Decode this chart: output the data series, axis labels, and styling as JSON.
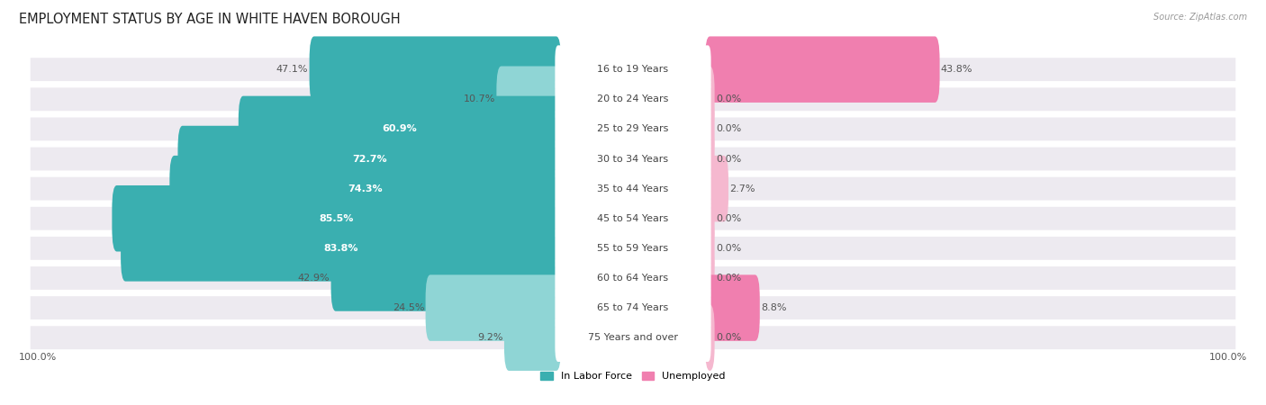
{
  "title": "EMPLOYMENT STATUS BY AGE IN WHITE HAVEN BOROUGH",
  "source": "Source: ZipAtlas.com",
  "categories": [
    "16 to 19 Years",
    "20 to 24 Years",
    "25 to 29 Years",
    "30 to 34 Years",
    "35 to 44 Years",
    "45 to 54 Years",
    "55 to 59 Years",
    "60 to 64 Years",
    "65 to 74 Years",
    "75 Years and over"
  ],
  "labor_force": [
    47.1,
    10.7,
    60.9,
    72.7,
    74.3,
    85.5,
    83.8,
    42.9,
    24.5,
    9.2
  ],
  "unemployed": [
    43.8,
    0.0,
    0.0,
    0.0,
    2.7,
    0.0,
    0.0,
    0.0,
    8.8,
    0.0
  ],
  "labor_force_color_dark": "#3AAFB0",
  "labor_force_color_light": "#8FD5D5",
  "unemployed_color_dark": "#F07FAF",
  "unemployed_color_light": "#F5B8CF",
  "row_bg_color": "#EDEAF0",
  "axis_label_left": "100.0%",
  "axis_label_right": "100.0%",
  "legend_labor": "In Labor Force",
  "legend_unemployed": "Unemployed",
  "title_fontsize": 10.5,
  "label_fontsize": 8.0,
  "category_fontsize": 8.0,
  "max_value": 100.0,
  "lf_dark_threshold": 40.0,
  "un_dark_threshold": 5.0
}
